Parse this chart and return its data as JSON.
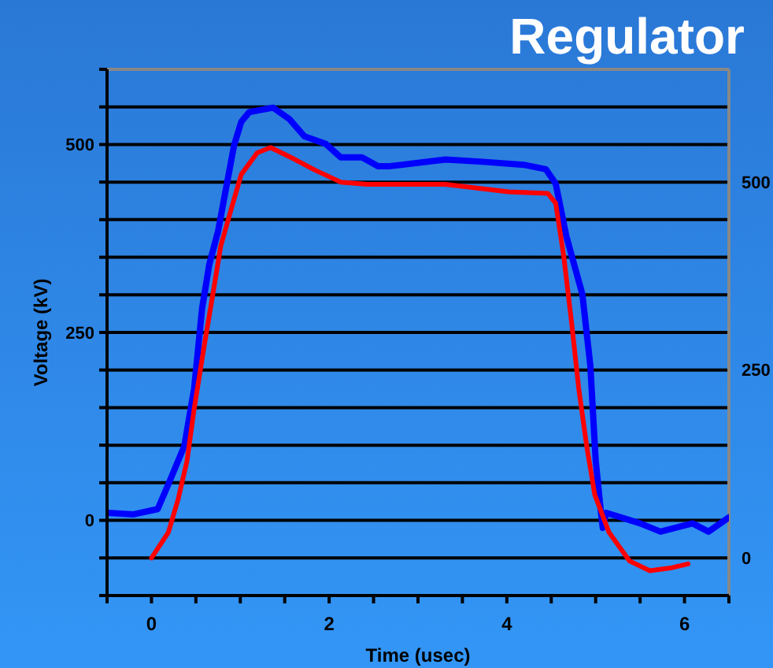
{
  "chart_data": {
    "type": "line",
    "title": "Regulator",
    "xlabel": "Time (usec)",
    "ylabel": "Voltage (kV)",
    "xlim": [
      -0.5,
      6.5
    ],
    "xticks": [
      {
        "value": -0.5,
        "label": null
      },
      0,
      {
        "value": 0.5,
        "label": null
      },
      {
        "value": 1,
        "label": null
      },
      {
        "value": 1.5,
        "label": null
      },
      2,
      {
        "value": 2.5,
        "label": null
      },
      {
        "value": 3,
        "label": null
      },
      {
        "value": 3.5,
        "label": null
      },
      4,
      {
        "value": 4.5,
        "label": null
      },
      {
        "value": 5,
        "label": null
      },
      {
        "value": 5.5,
        "label": null
      },
      6,
      {
        "value": 6.5,
        "label": null
      }
    ],
    "ylim": [
      -100,
      600
    ],
    "yticks": [
      {
        "value": -100,
        "label": null
      },
      {
        "value": -50,
        "label": null
      },
      0,
      {
        "value": 50,
        "label": null
      },
      {
        "value": 100,
        "label": null
      },
      {
        "value": 150,
        "label": null
      },
      {
        "value": 200,
        "label": null
      },
      250,
      {
        "value": 300,
        "label": null
      },
      {
        "value": 350,
        "label": null
      },
      {
        "value": 400,
        "label": null
      },
      {
        "value": 450,
        "label": null
      },
      500,
      {
        "value": 550,
        "label": null
      },
      {
        "value": 600,
        "label": null
      }
    ],
    "y2lim": [
      -50,
      650
    ],
    "y2ticks": [
      0,
      250,
      500
    ],
    "grid": "y",
    "marker": "none",
    "line_style": "solid",
    "series": [
      {
        "color": "#0000ff",
        "x": [
          -0.5,
          -0.2,
          0.07,
          0.19,
          0.37,
          0.48,
          0.57,
          0.65,
          0.75,
          0.84,
          0.93,
          1.01,
          1.1,
          1.37,
          1.55,
          1.72,
          1.96,
          2.13,
          2.37,
          2.55,
          2.67,
          3.31,
          3.73,
          4.19,
          4.44,
          4.55,
          4.67,
          4.85,
          4.94,
          5.0,
          5.06,
          5.08,
          5.12,
          5.5,
          5.73,
          6.09,
          6.27,
          6.5
        ],
        "values": [
          10,
          8,
          15,
          48,
          99,
          175,
          282,
          340,
          385,
          442,
          499,
          530,
          543,
          549,
          534,
          511,
          501,
          483,
          483,
          471,
          471,
          480,
          477,
          473,
          467,
          448,
          378,
          301,
          206,
          80,
          10,
          -10,
          10,
          -4,
          -15,
          -4,
          -15,
          4
        ]
      },
      {
        "color": "#ff0000",
        "axis": "y2",
        "x": [
          0,
          0.19,
          0.3,
          0.4,
          0.48,
          0.6,
          0.69,
          0.78,
          0.9,
          1.01,
          1.19,
          1.34,
          1.6,
          1.84,
          2.13,
          2.43,
          3.31,
          4.02,
          4.46,
          4.55,
          4.64,
          4.73,
          4.81,
          4.9,
          4.99,
          5.15,
          5.38,
          5.61,
          5.86,
          6.04
        ],
        "values": [
          0,
          34,
          78,
          129,
          198,
          287,
          350,
          415,
          465,
          510,
          539,
          546,
          531,
          516,
          500,
          497,
          497,
          487,
          485,
          472,
          402,
          312,
          225,
          148,
          84,
          34,
          -4,
          -17,
          -13,
          -8
        ]
      }
    ]
  }
}
